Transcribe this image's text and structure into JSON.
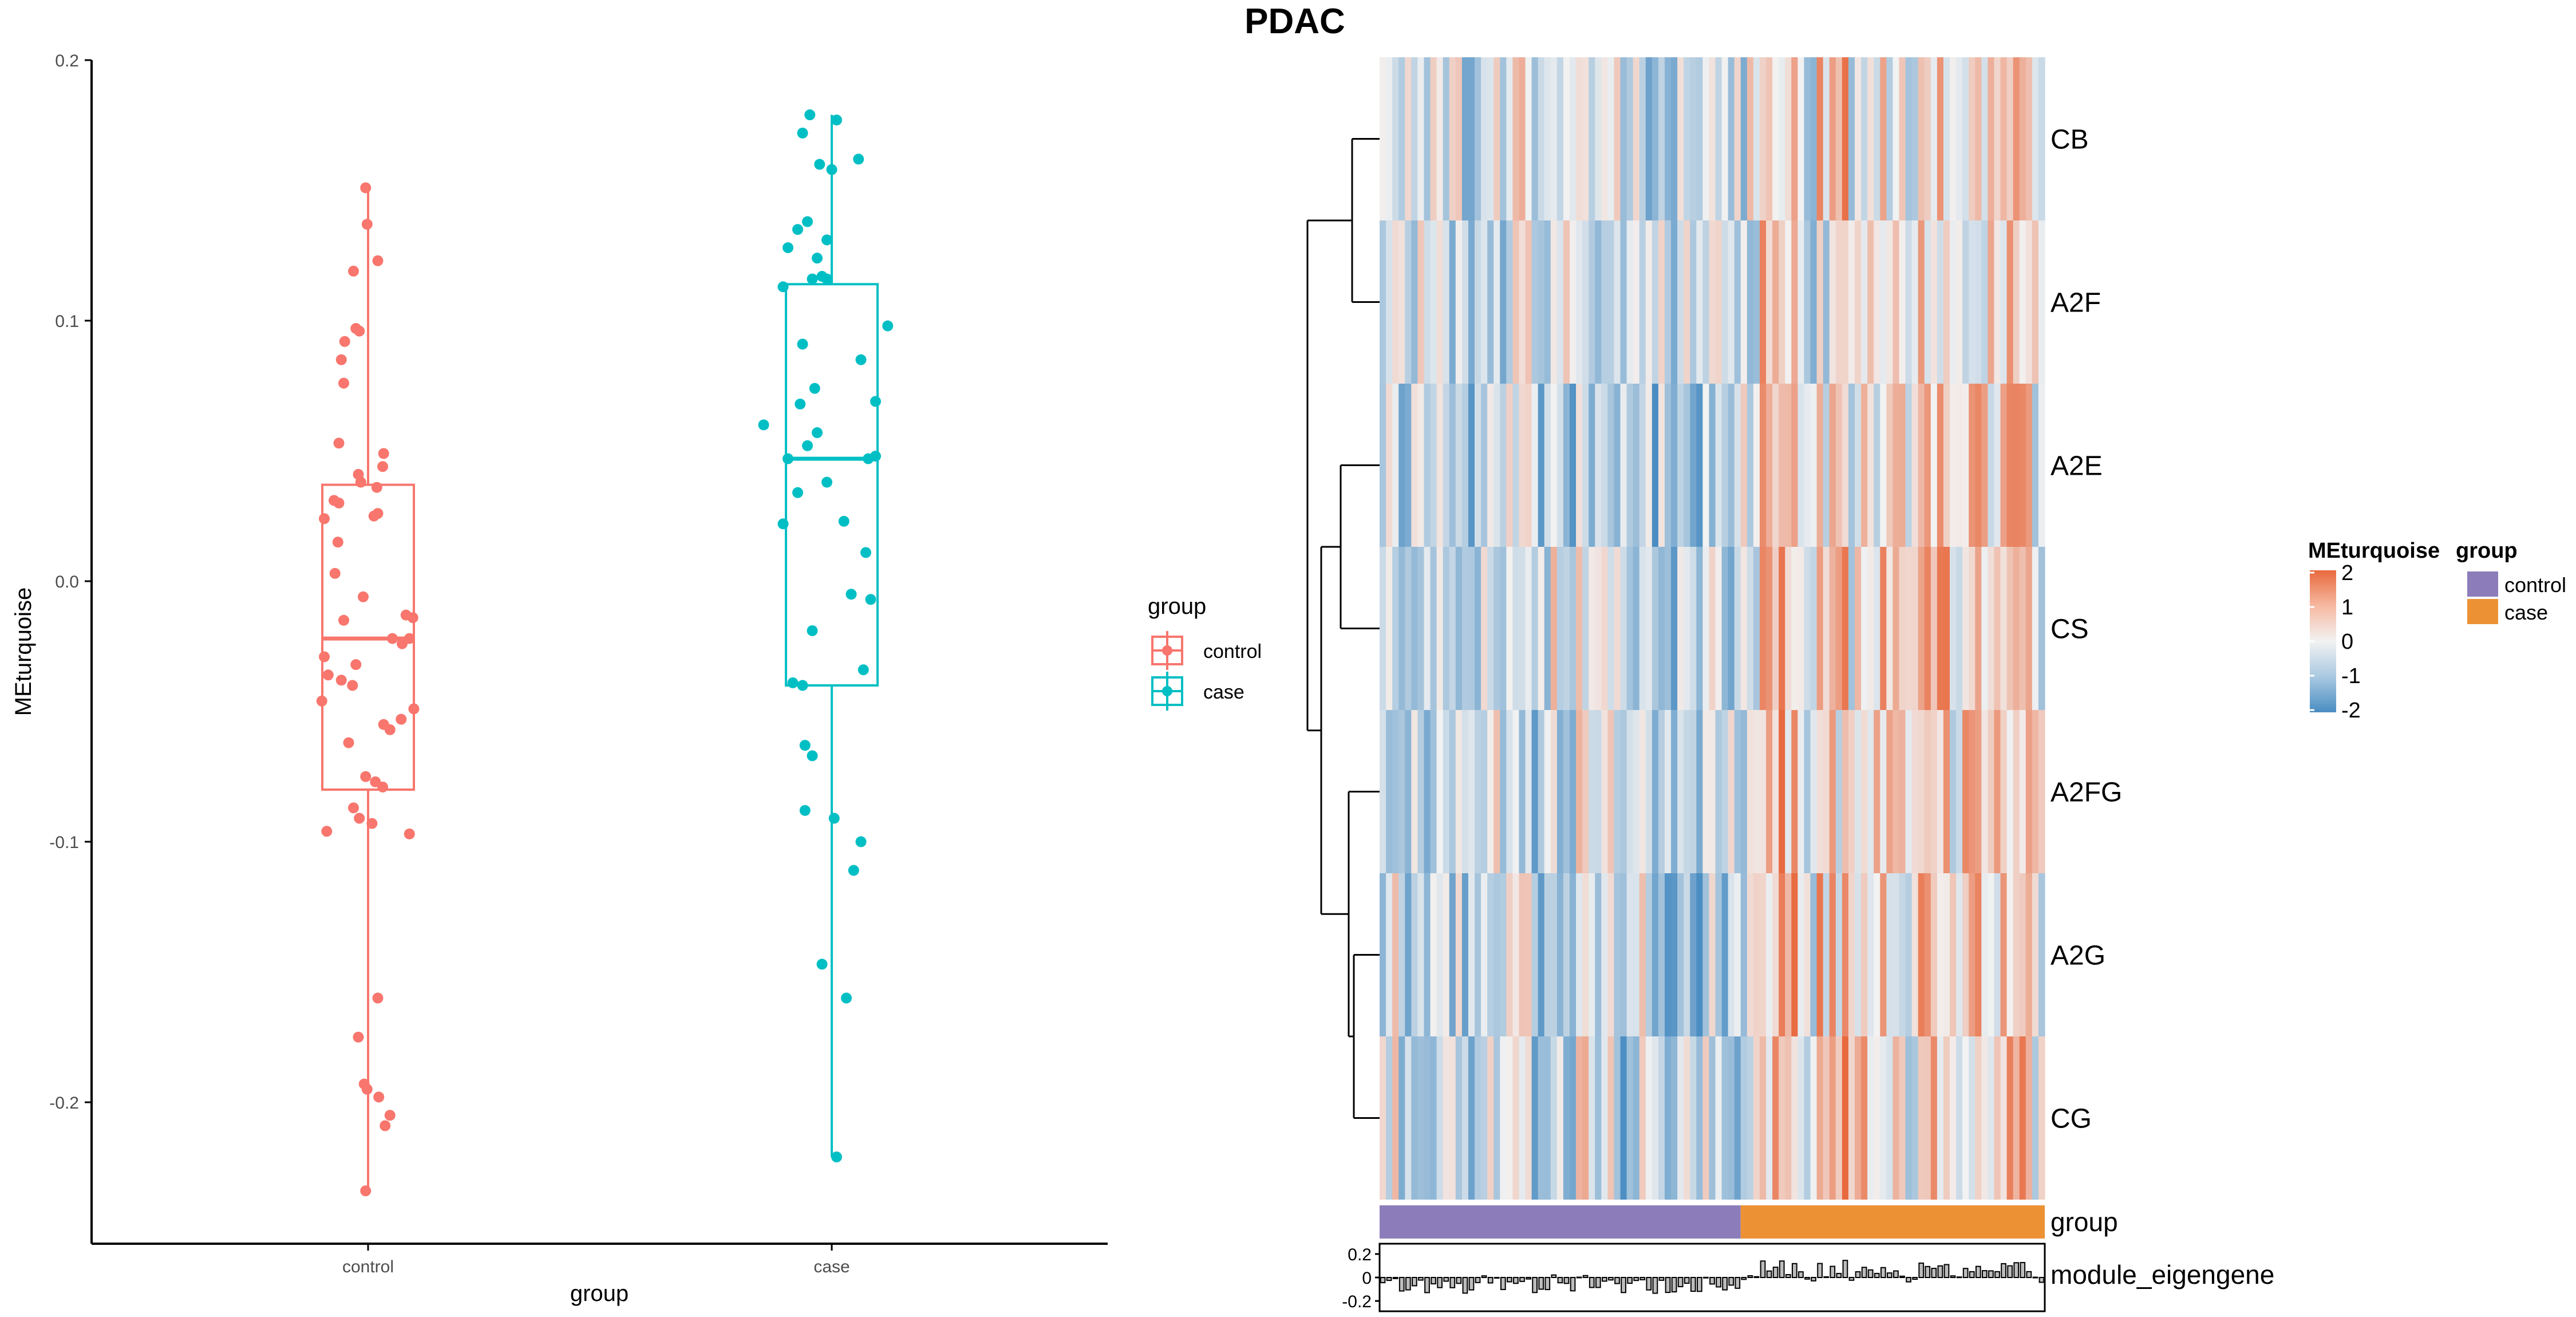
{
  "title": "PDAC",
  "colors": {
    "control": "#F8766D",
    "case": "#00BFC4",
    "heat_high": "#E8693E",
    "heat_mid": "#F2F2F2",
    "heat_low": "#4A8DC2",
    "group_control": "#8C7DBA",
    "group_case": "#EC9235",
    "axis": "#000000"
  },
  "chart_data": [
    {
      "type": "box",
      "title": "",
      "xlabel": "group",
      "ylabel": "MEturquoise",
      "categories": [
        "control",
        "case"
      ],
      "ylim": [
        -0.25,
        0.2
      ],
      "yticks": [
        -0.2,
        -0.1,
        0.0,
        0.1,
        0.2
      ],
      "ytick_labels": [
        "-0.2",
        "-0.1",
        "0.0",
        "0.1",
        "0.2"
      ],
      "grid": false,
      "legend": {
        "title": "group",
        "entries": [
          "control",
          "case"
        ],
        "placement": "right"
      },
      "boxes": [
        {
          "name": "control",
          "min": -0.234,
          "q1": -0.08,
          "median": -0.022,
          "q3": 0.037,
          "max": 0.151
        },
        {
          "name": "case",
          "min": -0.221,
          "q1": -0.04,
          "median": 0.047,
          "q3": 0.114,
          "max": 0.179
        }
      ],
      "points": {
        "control": [
          {
            "jitter": -0.05,
            "y": 0.151
          },
          {
            "jitter": -0.02,
            "y": 0.137
          },
          {
            "jitter": 0.2,
            "y": 0.123
          },
          {
            "jitter": -0.3,
            "y": 0.119
          },
          {
            "jitter": -0.25,
            "y": 0.097
          },
          {
            "jitter": -0.18,
            "y": 0.096
          },
          {
            "jitter": -0.48,
            "y": 0.092
          },
          {
            "jitter": -0.55,
            "y": 0.085
          },
          {
            "jitter": -0.5,
            "y": 0.076
          },
          {
            "jitter": -0.6,
            "y": 0.053
          },
          {
            "jitter": 0.32,
            "y": 0.049
          },
          {
            "jitter": 0.3,
            "y": 0.044
          },
          {
            "jitter": -0.2,
            "y": 0.041
          },
          {
            "jitter": -0.15,
            "y": 0.038
          },
          {
            "jitter": 0.18,
            "y": 0.036
          },
          {
            "jitter": -0.7,
            "y": 0.031
          },
          {
            "jitter": -0.6,
            "y": 0.03
          },
          {
            "jitter": 0.2,
            "y": 0.026
          },
          {
            "jitter": 0.12,
            "y": 0.025
          },
          {
            "jitter": -0.9,
            "y": 0.024
          },
          {
            "jitter": -0.62,
            "y": 0.015
          },
          {
            "jitter": -0.68,
            "y": 0.003
          },
          {
            "jitter": -0.1,
            "y": -0.006
          },
          {
            "jitter": -0.5,
            "y": -0.015
          },
          {
            "jitter": 0.78,
            "y": -0.013
          },
          {
            "jitter": 0.92,
            "y": -0.014
          },
          {
            "jitter": 0.5,
            "y": -0.022
          },
          {
            "jitter": 0.85,
            "y": -0.022
          },
          {
            "jitter": 0.7,
            "y": -0.024
          },
          {
            "jitter": -0.9,
            "y": -0.029
          },
          {
            "jitter": -0.25,
            "y": -0.032
          },
          {
            "jitter": -0.82,
            "y": -0.036
          },
          {
            "jitter": -0.55,
            "y": -0.038
          },
          {
            "jitter": -0.32,
            "y": -0.04
          },
          {
            "jitter": -0.95,
            "y": -0.046
          },
          {
            "jitter": 0.94,
            "y": -0.049
          },
          {
            "jitter": 0.68,
            "y": -0.053
          },
          {
            "jitter": 0.32,
            "y": -0.055
          },
          {
            "jitter": 0.45,
            "y": -0.057
          },
          {
            "jitter": -0.4,
            "y": -0.062
          },
          {
            "jitter": -0.05,
            "y": -0.075
          },
          {
            "jitter": 0.15,
            "y": -0.077
          },
          {
            "jitter": 0.3,
            "y": -0.079
          },
          {
            "jitter": -0.3,
            "y": -0.087
          },
          {
            "jitter": -0.18,
            "y": -0.091
          },
          {
            "jitter": 0.08,
            "y": -0.093
          },
          {
            "jitter": -0.85,
            "y": -0.096
          },
          {
            "jitter": 0.85,
            "y": -0.097
          },
          {
            "jitter": 0.2,
            "y": -0.16
          },
          {
            "jitter": -0.2,
            "y": -0.175
          },
          {
            "jitter": -0.08,
            "y": -0.193
          },
          {
            "jitter": -0.02,
            "y": -0.195
          },
          {
            "jitter": 0.22,
            "y": -0.198
          },
          {
            "jitter": 0.45,
            "y": -0.205
          },
          {
            "jitter": 0.35,
            "y": -0.209
          },
          {
            "jitter": -0.05,
            "y": -0.234
          }
        ],
        "case": [
          {
            "jitter": -0.45,
            "y": 0.179
          },
          {
            "jitter": 0.1,
            "y": 0.177
          },
          {
            "jitter": -0.6,
            "y": 0.172
          },
          {
            "jitter": 0.55,
            "y": 0.162
          },
          {
            "jitter": -0.25,
            "y": 0.16
          },
          {
            "jitter": 0.0,
            "y": 0.158
          },
          {
            "jitter": -0.5,
            "y": 0.138
          },
          {
            "jitter": -0.7,
            "y": 0.135
          },
          {
            "jitter": -0.1,
            "y": 0.131
          },
          {
            "jitter": -0.9,
            "y": 0.128
          },
          {
            "jitter": -0.3,
            "y": 0.124
          },
          {
            "jitter": -0.2,
            "y": 0.117
          },
          {
            "jitter": -0.4,
            "y": 0.116
          },
          {
            "jitter": -0.1,
            "y": 0.116
          },
          {
            "jitter": -1.0,
            "y": 0.113
          },
          {
            "jitter": 1.15,
            "y": 0.098
          },
          {
            "jitter": -0.6,
            "y": 0.091
          },
          {
            "jitter": 0.6,
            "y": 0.085
          },
          {
            "jitter": -0.35,
            "y": 0.074
          },
          {
            "jitter": 0.9,
            "y": 0.069
          },
          {
            "jitter": -0.65,
            "y": 0.068
          },
          {
            "jitter": -1.4,
            "y": 0.06
          },
          {
            "jitter": -0.3,
            "y": 0.057
          },
          {
            "jitter": -0.5,
            "y": 0.052
          },
          {
            "jitter": 0.9,
            "y": 0.048
          },
          {
            "jitter": 0.75,
            "y": 0.047
          },
          {
            "jitter": -0.9,
            "y": 0.047
          },
          {
            "jitter": -0.1,
            "y": 0.038
          },
          {
            "jitter": -0.7,
            "y": 0.034
          },
          {
            "jitter": 0.25,
            "y": 0.023
          },
          {
            "jitter": -1.0,
            "y": 0.022
          },
          {
            "jitter": 0.7,
            "y": 0.011
          },
          {
            "jitter": 0.4,
            "y": -0.005
          },
          {
            "jitter": 0.8,
            "y": -0.007
          },
          {
            "jitter": -0.4,
            "y": -0.019
          },
          {
            "jitter": 0.65,
            "y": -0.034
          },
          {
            "jitter": -0.8,
            "y": -0.039
          },
          {
            "jitter": -0.6,
            "y": -0.04
          },
          {
            "jitter": -0.55,
            "y": -0.063
          },
          {
            "jitter": -0.4,
            "y": -0.067
          },
          {
            "jitter": -0.55,
            "y": -0.088
          },
          {
            "jitter": 0.05,
            "y": -0.091
          },
          {
            "jitter": 0.6,
            "y": -0.1
          },
          {
            "jitter": 0.45,
            "y": -0.111
          },
          {
            "jitter": -0.2,
            "y": -0.147
          },
          {
            "jitter": 0.3,
            "y": -0.16
          },
          {
            "jitter": 0.1,
            "y": -0.221
          }
        ]
      }
    },
    {
      "type": "heatmap",
      "title": "PDAC",
      "rows": [
        "CB",
        "A2F",
        "A2E",
        "CS",
        "A2FG",
        "A2G",
        "CG"
      ],
      "dendrogram_clusters": [
        [
          "CB",
          "A2F"
        ],
        [
          "A2E",
          "CS"
        ],
        [
          "A2FG",
          [
            "A2G",
            "CG"
          ]
        ]
      ],
      "color_legend": {
        "title": "MEturquoise",
        "ticks": [
          2,
          1,
          0,
          -1,
          -2
        ]
      },
      "group_legend": {
        "title": "group",
        "entries": [
          "control",
          "case"
        ]
      },
      "group_annotation_label": "group",
      "group_split": {
        "control": 57,
        "case": 48
      },
      "eigengene_label": "module_eigengene",
      "eigengene_yticks": [
        "0.2",
        "0",
        "-0.2"
      ],
      "eigengene_ylim": [
        -0.25,
        0.25
      ]
    }
  ]
}
